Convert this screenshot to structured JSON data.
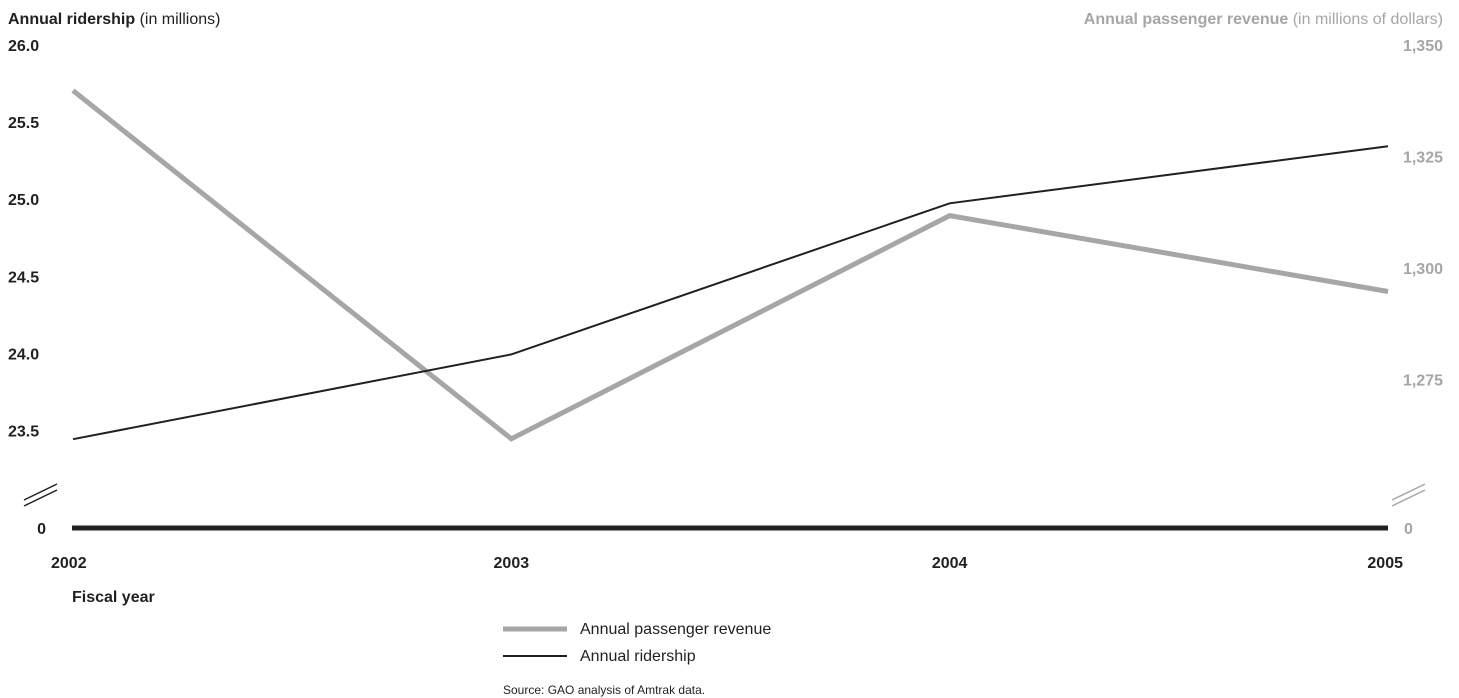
{
  "chart_data": {
    "type": "line",
    "left_axis": {
      "title_bold": "Annual ridership",
      "title_rest": " (in millions)",
      "ticks": [
        "26.0",
        "25.5",
        "25.0",
        "24.5",
        "24.0",
        "23.5"
      ],
      "zero_label": "0",
      "ylim": [
        23.25,
        26.0
      ],
      "axis_break": true
    },
    "right_axis": {
      "title_bold": "Annual passenger revenue",
      "title_rest": " (in millions of dollars)",
      "ticks": [
        "1,350",
        "1,325",
        "1,300",
        "1,275"
      ],
      "zero_label": "0",
      "ylim": [
        1255,
        1350
      ],
      "axis_break": true
    },
    "x": {
      "categories": [
        "2002",
        "2003",
        "2004",
        "2005"
      ],
      "label": "Fiscal year"
    },
    "series": [
      {
        "name": "Annual passenger revenue",
        "axis": "right",
        "color": "#a6a6a8",
        "values": [
          1340,
          1262,
          1312,
          1295
        ]
      },
      {
        "name": "Annual ridership",
        "axis": "left",
        "color": "#231f20",
        "values": [
          23.45,
          24.0,
          24.98,
          25.35
        ]
      }
    ],
    "legend_placement": "bottom-center",
    "grid": false,
    "source": "Source: GAO analysis of Amtrak data.",
    "colors": {
      "dark": "#231f20",
      "gray": "#a6a6a8",
      "axis": "#231f20"
    }
  }
}
